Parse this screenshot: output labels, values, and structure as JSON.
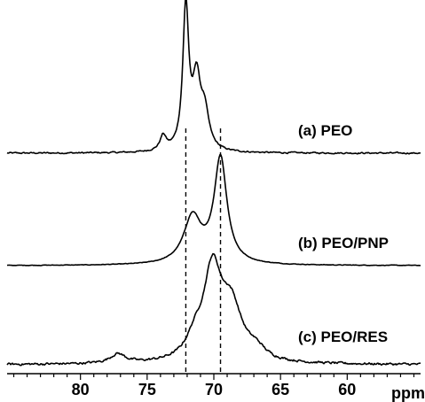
{
  "chart_data": {
    "type": "line",
    "x_unit": "ppm",
    "x_reversed": true,
    "xlim": [
      85.5,
      54.5
    ],
    "x_ticks": [
      80,
      75,
      70,
      65,
      60
    ],
    "x_tick_labels": [
      "80",
      "75",
      "70",
      "65",
      "60"
    ],
    "reference_lines_ppm": [
      72.1,
      69.5
    ],
    "y_ticks": false,
    "grid": false,
    "series": [
      {
        "name": "(a) PEO",
        "label": "(a) PEO",
        "peaks": [
          {
            "ppm": 73.8,
            "height": 0.1,
            "width": 0.28
          },
          {
            "ppm": 72.1,
            "height": 0.98,
            "width": 0.27
          },
          {
            "ppm": 71.3,
            "height": 0.45,
            "width": 0.35
          },
          {
            "ppm": 70.7,
            "height": 0.25,
            "width": 0.4
          }
        ],
        "noise_level": 0.008
      },
      {
        "name": "(b) PEO/PNP",
        "label": "(b) PEO/PNP",
        "peaks": [
          {
            "ppm": 71.6,
            "height": 0.3,
            "width": 0.8
          },
          {
            "ppm": 69.5,
            "height": 0.68,
            "width": 0.58
          }
        ],
        "noise_level": 0.003
      },
      {
        "name": "(c) PEO/RES",
        "label": "(c) PEO/RES",
        "peaks": [
          {
            "ppm": 77.2,
            "height": 0.06,
            "width": 0.7
          },
          {
            "ppm": 71.4,
            "height": 0.12,
            "width": 0.8
          },
          {
            "ppm": 70.1,
            "height": 0.56,
            "width": 0.8
          },
          {
            "ppm": 68.7,
            "height": 0.34,
            "width": 1.0
          },
          {
            "ppm": 66.8,
            "height": 0.06,
            "width": 0.8
          }
        ],
        "noise_level": 0.012
      }
    ]
  }
}
